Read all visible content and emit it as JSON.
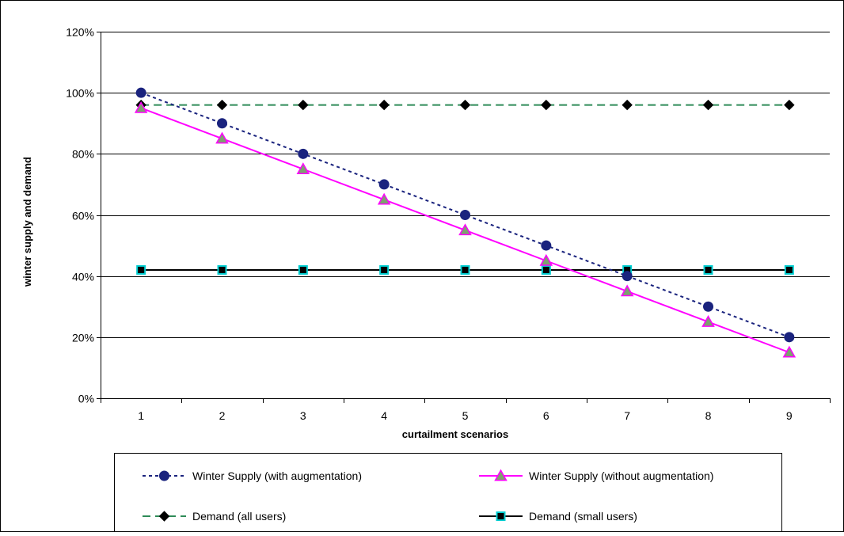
{
  "chart_data": {
    "type": "line",
    "xlabel": "curtailment scenarios",
    "ylabel": "winter supply and demand",
    "x": [
      1,
      2,
      3,
      4,
      5,
      6,
      7,
      8,
      9
    ],
    "ylim": [
      0,
      1.2
    ],
    "yticks": [
      0,
      0.2,
      0.4,
      0.6,
      0.8,
      1.0,
      1.2
    ],
    "ytick_labels": [
      "0%",
      "20%",
      "40%",
      "60%",
      "80%",
      "100%",
      "120%"
    ],
    "grid": "horizontal",
    "legend_position": "bottom",
    "series": [
      {
        "name": "Winter Supply (with augmentation)",
        "values": [
          1.0,
          0.9,
          0.8,
          0.7,
          0.6,
          0.5,
          0.4,
          0.3,
          0.2
        ],
        "line_color": "#1a237e",
        "line_style": "dotted",
        "marker": "circle",
        "marker_fill": "#1a237e",
        "marker_stroke": "#1a237e"
      },
      {
        "name": "Winter Supply (without augmentation)",
        "values": [
          0.95,
          0.85,
          0.75,
          0.65,
          0.55,
          0.45,
          0.35,
          0.25,
          0.15
        ],
        "line_color": "#ff00ff",
        "line_style": "solid",
        "marker": "triangle",
        "marker_fill": "#7fa06f",
        "marker_stroke": "#ff00ff"
      },
      {
        "name": "Demand (all users)",
        "values": [
          0.96,
          0.96,
          0.96,
          0.96,
          0.96,
          0.96,
          0.96,
          0.96,
          0.96
        ],
        "line_color": "#2e8b57",
        "line_style": "dashed",
        "marker": "diamond",
        "marker_fill": "#000000",
        "marker_stroke": "#000000"
      },
      {
        "name": "Demand (small users)",
        "values": [
          0.42,
          0.42,
          0.42,
          0.42,
          0.42,
          0.42,
          0.42,
          0.42,
          0.42
        ],
        "line_color": "#000000",
        "line_style": "solid",
        "marker": "square",
        "marker_fill": "#000000",
        "marker_stroke": "#00ced1"
      }
    ]
  }
}
